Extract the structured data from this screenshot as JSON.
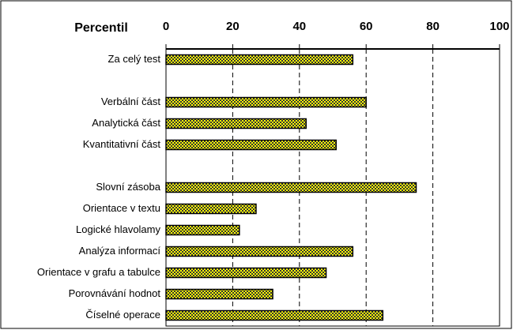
{
  "chart_data": {
    "type": "barh",
    "title": "Percentil",
    "categories": [
      "Za celý test",
      null,
      "Verbální část",
      "Analytická část",
      "Kvantitativní část",
      null,
      "Slovní zásoba",
      "Orientace v textu",
      "Logické hlavolamy",
      "Analýza informací",
      "Orientace v grafu a tabulce",
      "Porovnávání hodnot",
      "Číselné operace"
    ],
    "values": [
      56,
      null,
      60,
      42,
      51,
      null,
      75,
      27,
      22,
      56,
      48,
      32,
      65
    ],
    "color": "#ffff00",
    "xlim": [
      0,
      100
    ],
    "xticks": [
      0,
      20,
      40,
      60,
      80,
      100
    ],
    "grid": true
  }
}
